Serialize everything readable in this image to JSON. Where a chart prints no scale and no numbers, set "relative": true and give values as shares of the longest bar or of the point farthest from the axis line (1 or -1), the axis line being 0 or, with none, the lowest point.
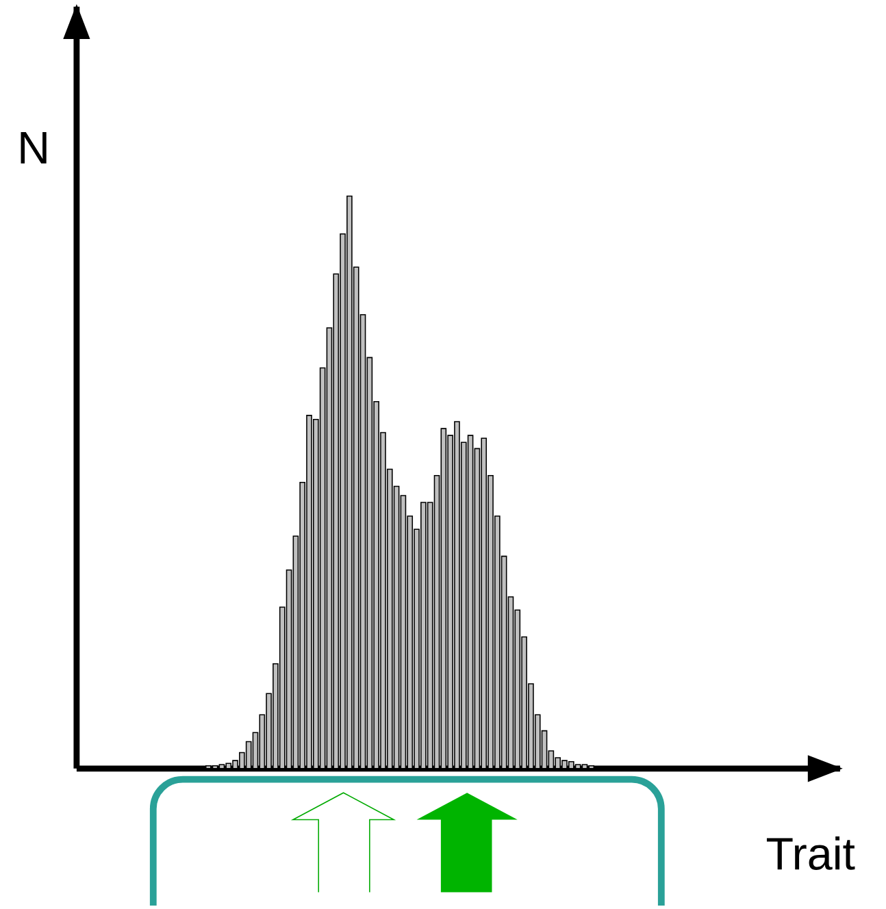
{
  "chart_data": {
    "type": "bar",
    "xlabel": "Trait",
    "ylabel": "N",
    "relative": true,
    "color": "#c0c0c0",
    "categories": [
      null,
      null,
      null,
      null,
      null,
      null,
      null,
      null,
      null,
      null,
      null,
      null,
      null,
      null,
      null,
      null,
      null,
      null,
      null,
      null,
      null,
      null,
      null,
      null,
      null,
      null,
      null,
      null,
      null,
      null,
      null,
      null,
      null,
      null,
      null,
      null,
      null,
      null,
      null,
      null,
      null,
      null,
      null,
      null,
      null,
      null,
      null,
      null,
      null,
      null,
      null,
      null,
      null,
      null,
      null,
      null,
      null,
      null
    ],
    "values": [
      0.005,
      0.005,
      0.007,
      0.009,
      0.014,
      0.028,
      0.047,
      0.063,
      0.094,
      0.131,
      0.183,
      0.282,
      0.347,
      0.406,
      0.5,
      0.617,
      0.61,
      0.7,
      0.77,
      0.864,
      0.934,
      1,
      0.876,
      0.793,
      0.718,
      0.641,
      0.587,
      0.523,
      0.493,
      0.477,
      0.441,
      0.418,
      0.465,
      0.465,
      0.512,
      0.594,
      0.582,
      0.606,
      0.57,
      0.582,
      0.559,
      0.577,
      0.512,
      0.441,
      0.371,
      0.3,
      0.277,
      0.23,
      0.148,
      0.094,
      0.066,
      0.031,
      0.019,
      0.014,
      0.012,
      0.007,
      0.007,
      0.005
    ]
  }
}
